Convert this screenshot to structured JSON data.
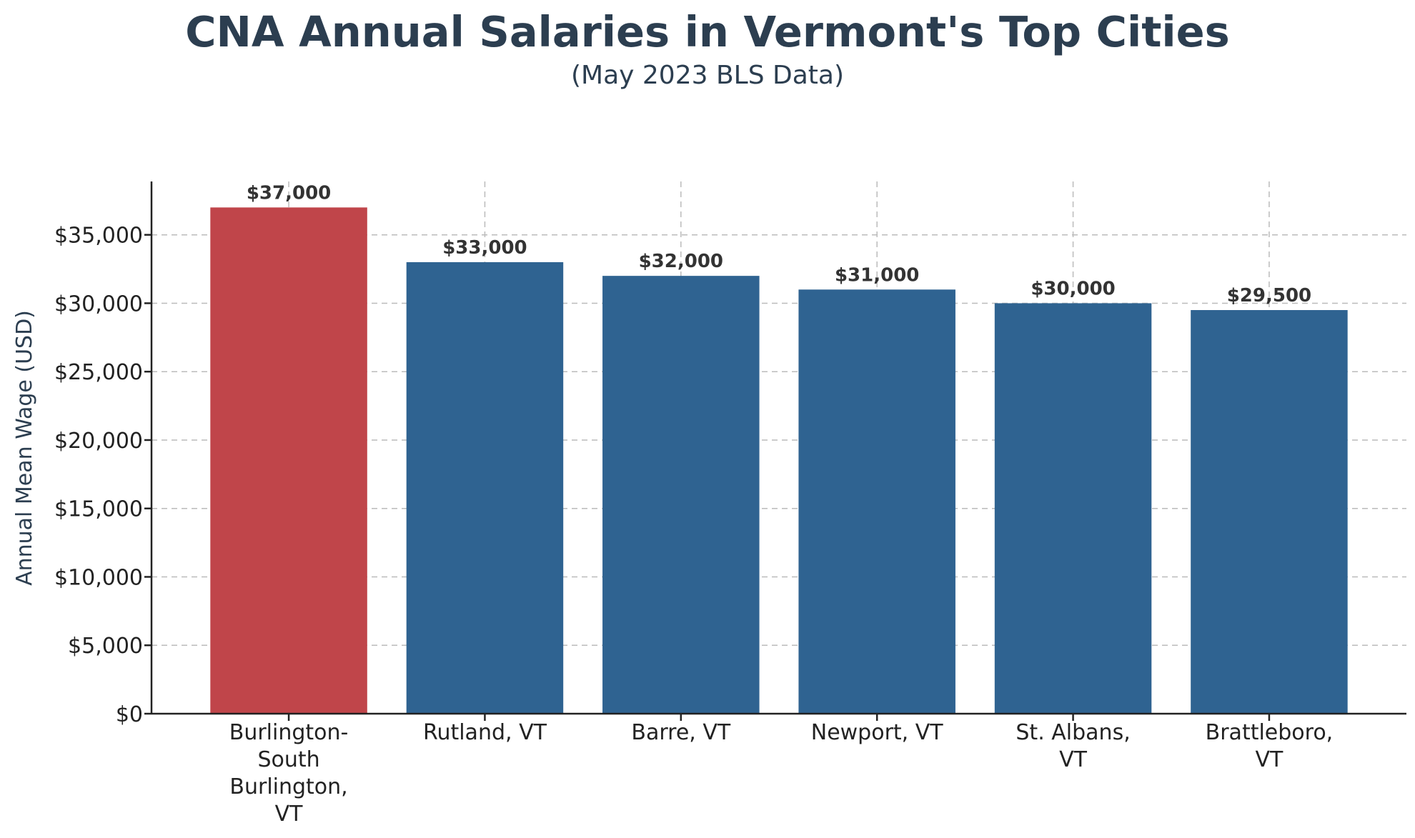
{
  "chart_data": {
    "type": "bar",
    "title": "CNA Annual Salaries in Vermont's Top Cities",
    "subtitle": "(May 2023 BLS Data)",
    "xlabel": "",
    "ylabel": "Annual Mean Wage (USD)",
    "ylim": [
      0,
      38900
    ],
    "yticks": [
      0,
      5000,
      10000,
      15000,
      20000,
      25000,
      30000,
      35000
    ],
    "ytick_labels": [
      "$0",
      "$5,000",
      "$10,000",
      "$15,000",
      "$20,000",
      "$25,000",
      "$30,000",
      "$35,000"
    ],
    "categories": [
      "Burlington-South Burlington, VT",
      "Rutland, VT",
      "Barre, VT",
      "Newport, VT",
      "St. Albans, VT",
      "Brattleboro, VT"
    ],
    "category_label_lines": [
      [
        "Burlington-",
        "South",
        "Burlington,",
        "VT"
      ],
      [
        "Rutland, VT"
      ],
      [
        "Barre, VT"
      ],
      [
        "Newport, VT"
      ],
      [
        "St. Albans,",
        "VT"
      ],
      [
        "Brattleboro,",
        "VT"
      ]
    ],
    "values": [
      37000,
      33000,
      32000,
      31000,
      30000,
      29500
    ],
    "data_labels": [
      "$37,000",
      "$33,000",
      "$32,000",
      "$31,000",
      "$30,000",
      "$29,500"
    ],
    "bar_colors": [
      "#c0454a",
      "#2f6391",
      "#2f6391",
      "#2f6391",
      "#2f6391",
      "#2f6391"
    ],
    "grid": true,
    "legend": "none"
  }
}
